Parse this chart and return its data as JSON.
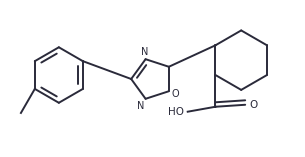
{
  "bg_color": "#ffffff",
  "line_color": "#2a2a3a",
  "lw": 1.4,
  "fig_width": 3.05,
  "fig_height": 1.57,
  "dpi": 100,
  "xlim": [
    0,
    3.05
  ],
  "ylim": [
    0,
    1.57
  ]
}
